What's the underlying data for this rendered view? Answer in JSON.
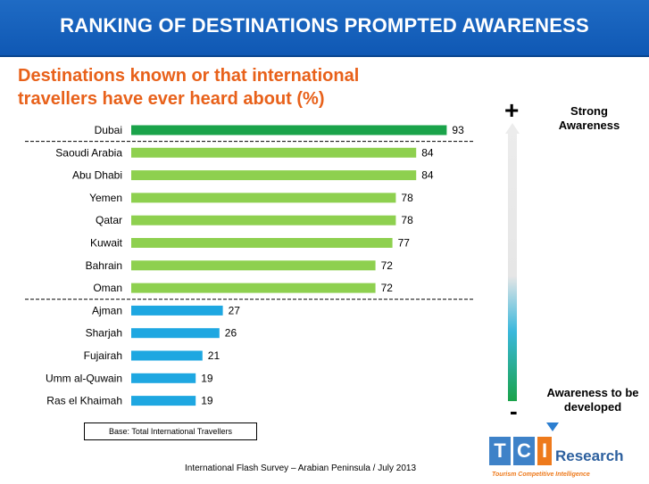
{
  "header": {
    "title": "RANKING OF DESTINATIONS PROMPTED AWARENESS"
  },
  "subtitle": "Destinations known or that international travellers have ever heard about (%)",
  "colors": {
    "title_bar": "#1565c0",
    "subtitle": "#e8611a",
    "top_bar": "#1aa34a",
    "high_bar": "#8ed04f",
    "low_bar": "#1ea7e1"
  },
  "chart_data": {
    "type": "bar",
    "orientation": "horizontal",
    "categories": [
      "Dubai",
      "Saoudi Arabia",
      "Abu Dhabi",
      "Yemen",
      "Qatar",
      "Kuwait",
      "Bahrain",
      "Oman",
      "Ajman",
      "Sharjah",
      "Fujairah",
      "Umm al-Quwain",
      "Ras el Khaimah"
    ],
    "values": [
      93,
      84,
      84,
      78,
      78,
      77,
      72,
      72,
      27,
      26,
      21,
      19,
      19
    ],
    "groups": [
      "top",
      "high",
      "high",
      "high",
      "high",
      "high",
      "high",
      "high",
      "low",
      "low",
      "low",
      "low",
      "low"
    ],
    "separators_after": [
      "Dubai",
      "Oman"
    ],
    "xlim": [
      0,
      100
    ]
  },
  "scale": {
    "plus": "+",
    "minus": "-",
    "top_label": "Strong Awareness",
    "bottom_label": "Awareness to be developed"
  },
  "base_note": "Base: Total International Travellers",
  "footer": "International Flash Survey – Arabian Peninsula  / July 2013",
  "logo": {
    "letter_t": "T",
    "letter_c": "C",
    "letter_i": "I",
    "word": "Research",
    "tagline": "Tourism Competitive Intelligence"
  }
}
